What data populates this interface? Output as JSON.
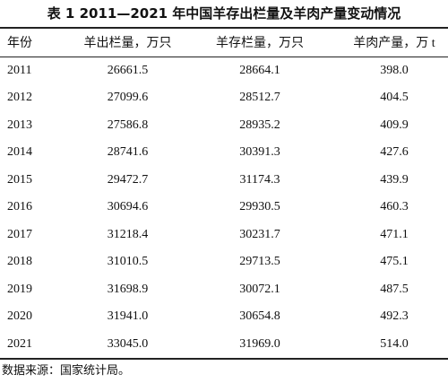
{
  "title": "表 1  2011—2021 年中国羊存出栏量及羊肉产量变动情况",
  "table": {
    "header": [
      "年份",
      "羊出栏量，万只",
      "羊存栏量，万只",
      "羊肉产量，万 t"
    ],
    "rows": [
      [
        "2011",
        "26661.5",
        "28664.1",
        "398.0"
      ],
      [
        "2012",
        "27099.6",
        "28512.7",
        "404.5"
      ],
      [
        "2013",
        "27586.8",
        "28935.2",
        "409.9"
      ],
      [
        "2014",
        "28741.6",
        "30391.3",
        "427.6"
      ],
      [
        "2015",
        "29472.7",
        "31174.3",
        "439.9"
      ],
      [
        "2016",
        "30694.6",
        "29930.5",
        "460.3"
      ],
      [
        "2017",
        "31218.4",
        "30231.7",
        "471.1"
      ],
      [
        "2018",
        "31010.5",
        "29713.5",
        "475.1"
      ],
      [
        "2019",
        "31698.9",
        "30072.1",
        "487.5"
      ],
      [
        "2020",
        "31941.0",
        "30654.8",
        "492.3"
      ],
      [
        "2021",
        "33045.0",
        "31969.0",
        "514.0"
      ]
    ]
  },
  "note": "数据来源：国家统计局。"
}
